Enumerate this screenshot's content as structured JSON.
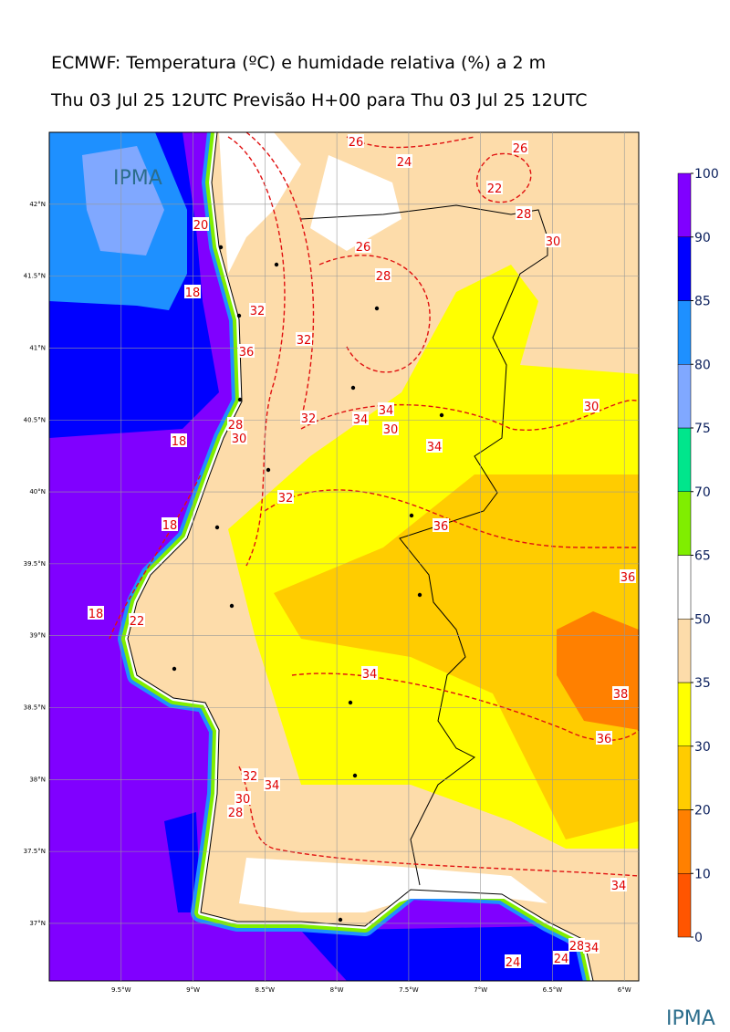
{
  "title": "ECMWF: Temperatura (ºC) e humidade relativa (%) a 2 m",
  "subtitle": "Thu 03 Jul 25 12UTC Previsão H+00 para Thu 03 Jul 25 12UTC",
  "logo_top": "IPMA",
  "logo_bottom": "IPMA",
  "axes": {
    "lon_range": [
      -10,
      -5.9
    ],
    "lat_range": [
      36.6,
      42.5
    ],
    "lon_ticks": [
      {
        "value": -9.5,
        "label": "9.5°W"
      },
      {
        "value": -9,
        "label": "9°W"
      },
      {
        "value": -8.5,
        "label": "8.5°W"
      },
      {
        "value": -8,
        "label": "8°W"
      },
      {
        "value": -7.5,
        "label": "7.5°W"
      },
      {
        "value": -7,
        "label": "7°W"
      },
      {
        "value": -6.5,
        "label": "6.5°W"
      },
      {
        "value": -6,
        "label": "6°W"
      }
    ],
    "lat_ticks": [
      {
        "value": 42,
        "label": "42°N"
      },
      {
        "value": 41.5,
        "label": "41.5°N"
      },
      {
        "value": 41,
        "label": "41°N"
      },
      {
        "value": 40.5,
        "label": "40.5°N"
      },
      {
        "value": 40,
        "label": "40°N"
      },
      {
        "value": 39.5,
        "label": "39.5°N"
      },
      {
        "value": 39,
        "label": "39°N"
      },
      {
        "value": 38.5,
        "label": "38.5°N"
      },
      {
        "value": 38,
        "label": "38°N"
      },
      {
        "value": 37.5,
        "label": "37.5°N"
      },
      {
        "value": 37,
        "label": "37°N"
      }
    ]
  },
  "colorbar": {
    "levels": [
      0,
      10,
      20,
      30,
      35,
      50,
      65,
      70,
      75,
      80,
      85,
      90,
      100
    ],
    "colors": [
      "#ff5500",
      "#ff8000",
      "#ffcc00",
      "#ffff00",
      "#fddcaa",
      "#ffffff",
      "#80ee00",
      "#00e68c",
      "#80a8ff",
      "#1e90ff",
      "#0000ff",
      "#8000ff"
    ]
  },
  "contour_labels": [
    26,
    24,
    26,
    22,
    28,
    30,
    26,
    28,
    20,
    18,
    32,
    32,
    36,
    32,
    34,
    34,
    30,
    30,
    34,
    28,
    30,
    18,
    32,
    36,
    18,
    36,
    18,
    22,
    34,
    38,
    36,
    32,
    34,
    30,
    28,
    34,
    24,
    24,
    28,
    34
  ]
}
